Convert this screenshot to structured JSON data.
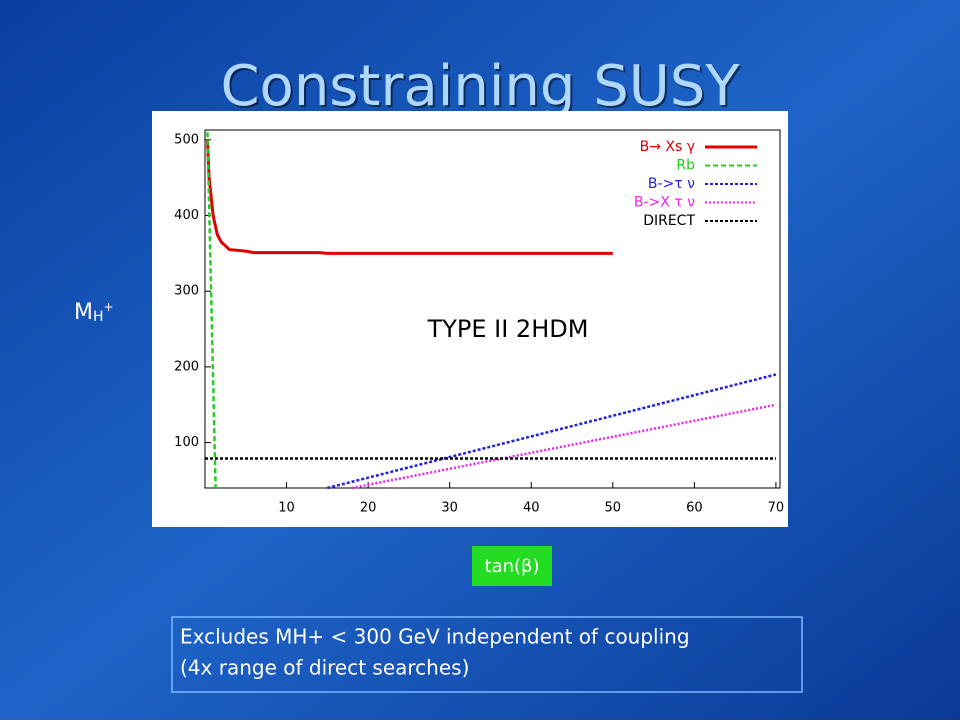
{
  "slide": {
    "title": "Constraining SUSY",
    "y_label": {
      "main": "M",
      "sub": "H",
      "sup": "+"
    },
    "x_label": "tan(β)",
    "caption": [
      "Excludes MH+ < 300 GeV independent of coupling",
      "(4x range of direct searches)"
    ]
  },
  "chart_data": {
    "type": "line",
    "annotation": "TYPE II 2HDM",
    "xlim": [
      0,
      70.5
    ],
    "ylim": [
      40,
      513
    ],
    "xticks": [
      10,
      20,
      30,
      40,
      50,
      60,
      70
    ],
    "yticks": [
      100,
      200,
      300,
      400,
      500
    ],
    "series": [
      {
        "name": "B→ Xs γ",
        "color": "#e00000",
        "x": [
          0.3,
          0.5,
          1,
          1.5,
          2,
          3,
          5,
          6,
          14,
          15,
          50
        ],
        "values": [
          500,
          450,
          400,
          375,
          365,
          355,
          353,
          351,
          351,
          350,
          350
        ]
      },
      {
        "name": "Rb",
        "color": "#22cc22",
        "x": [
          0.3,
          1.3
        ],
        "values": [
          510,
          40
        ]
      },
      {
        "name": "B->τ ν",
        "color": "#2222dd",
        "x": [
          15,
          70
        ],
        "values": [
          40,
          190
        ]
      },
      {
        "name": "B->X τ ν",
        "color": "#ee22ee",
        "x": [
          18,
          70
        ],
        "values": [
          40,
          150
        ]
      },
      {
        "name": "DIRECT",
        "color": "#000000",
        "x": [
          0,
          70
        ],
        "values": [
          79,
          79
        ]
      }
    ]
  }
}
